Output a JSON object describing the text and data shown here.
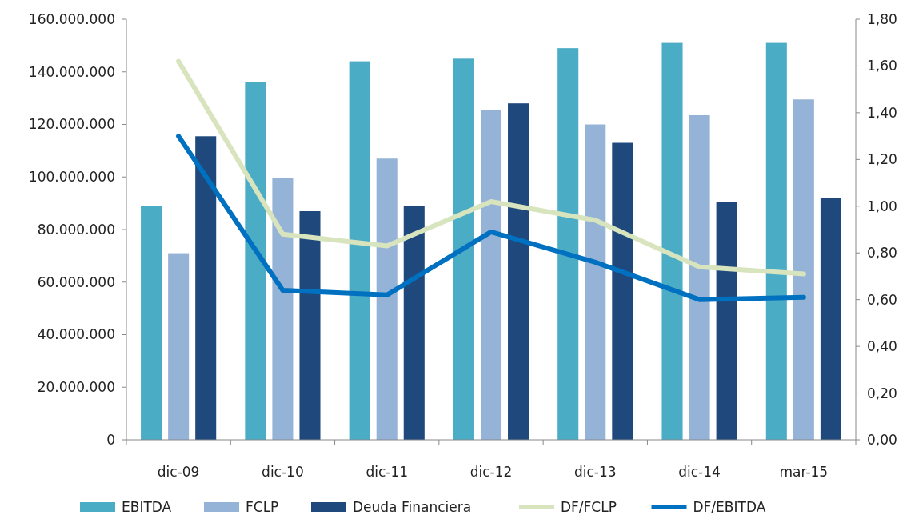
{
  "chart_data": {
    "type": "bar",
    "categories": [
      "dic-09",
      "dic-10",
      "dic-11",
      "dic-12",
      "dic-13",
      "dic-14",
      "mar-15"
    ],
    "series": [
      {
        "name": "EBITDA",
        "color": "#4bacc6",
        "values": [
          89000000,
          136000000,
          144000000,
          145000000,
          149000000,
          151000000,
          151000000
        ]
      },
      {
        "name": "FCLP",
        "color": "#95b3d7",
        "values": [
          71000000,
          99500000,
          107000000,
          125500000,
          120000000,
          123500000,
          129500000
        ]
      },
      {
        "name": "Deuda Financiera",
        "color": "#1f497d",
        "values": [
          115500000,
          87000000,
          89000000,
          128000000,
          113000000,
          90500000,
          92000000
        ]
      },
      {
        "name": "DF/FCLP",
        "type": "line",
        "axis": "y2",
        "color": "#d7e4bd",
        "values": [
          1.62,
          0.88,
          0.83,
          1.02,
          0.94,
          0.74,
          0.71
        ]
      },
      {
        "name": "DF/EBITDA",
        "type": "line",
        "axis": "y2",
        "color": "#0070c0",
        "values": [
          1.3,
          0.64,
          0.62,
          0.89,
          0.76,
          0.6,
          0.61
        ]
      }
    ],
    "ylim": [
      0,
      160000000
    ],
    "yticks": [
      0,
      {
        "value": 20000000,
        "label": "20.000.000"
      },
      {
        "value": 40000000,
        "label": "40.000.000"
      },
      {
        "value": 60000000,
        "label": "60.000.000"
      },
      {
        "value": 80000000,
        "label": "80.000.000"
      },
      {
        "value": 100000000,
        "label": "100.000.000"
      },
      {
        "value": 120000000,
        "label": "120.000.000"
      },
      {
        "value": 140000000,
        "label": "140.000.000"
      },
      {
        "value": 160000000,
        "label": "160.000.000"
      }
    ],
    "y2lim": [
      0,
      1.8
    ],
    "y2ticks": [
      {
        "value": 0,
        "label": "0,00"
      },
      {
        "value": 0.2,
        "label": "0,20"
      },
      {
        "value": 0.4,
        "label": "0,40"
      },
      {
        "value": 0.6,
        "label": "0,60"
      },
      {
        "value": 0.8,
        "label": "0,80"
      },
      {
        "value": 1,
        "label": "1,00"
      },
      {
        "value": 1.2,
        "label": "1,20"
      },
      {
        "value": 1.4,
        "label": "1,40"
      },
      {
        "value": 1.6,
        "label": "1,60"
      },
      {
        "value": 1.8,
        "label": "1,80"
      }
    ],
    "grid": false,
    "legend": "bottom",
    "marker": "none",
    "line_style": "solid"
  }
}
